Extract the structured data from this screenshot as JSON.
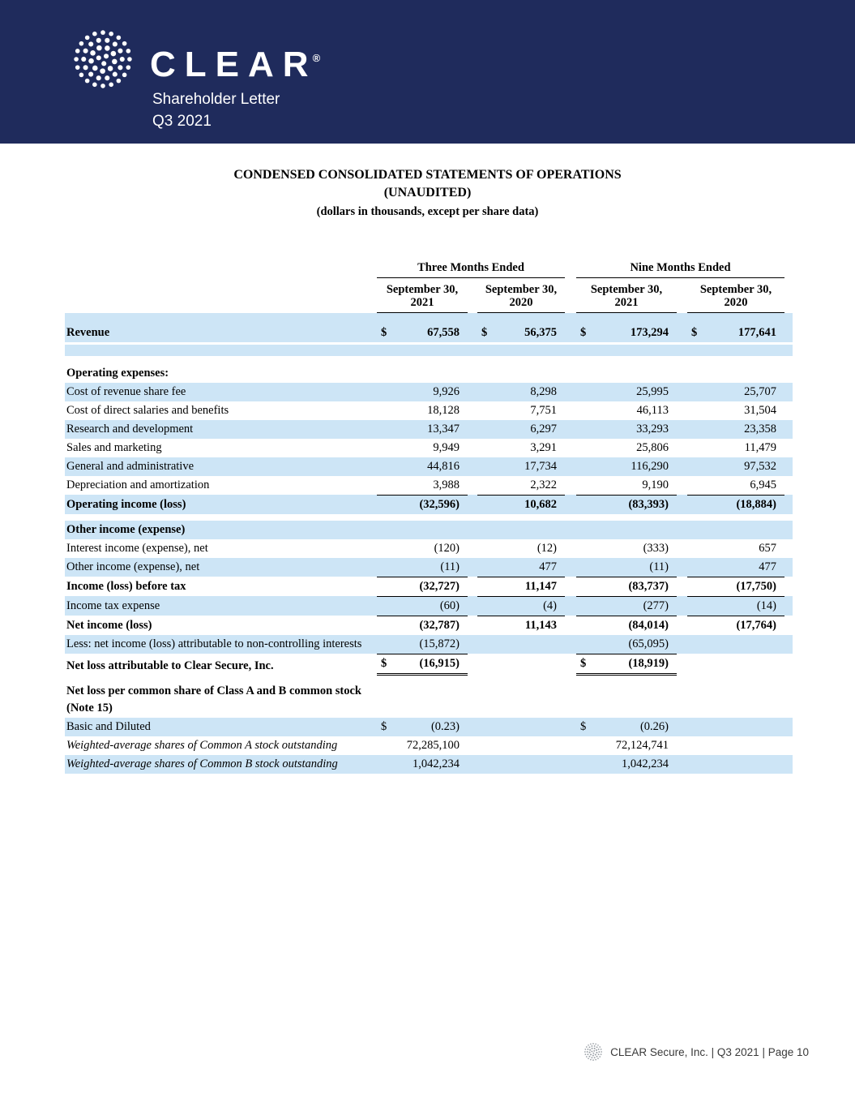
{
  "colors": {
    "banner_bg": "#1f2b5c",
    "row_band": "#cde5f6"
  },
  "banner": {
    "brand": "CLEAR",
    "reg_mark": "®",
    "subtitle": "Shareholder Letter",
    "period": "Q3 2021",
    "logo_icon": "clear-dotted-circle"
  },
  "doc_title": {
    "line1": "CONDENSED CONSOLIDATED STATEMENTS OF OPERATIONS",
    "line2": "(UNAUDITED)",
    "line3": "(dollars in thousands, except per share data)"
  },
  "table": {
    "group_headers": [
      "Three Months Ended",
      "Nine Months Ended"
    ],
    "column_headers": [
      "September 30,\n2021",
      "September 30,\n2020",
      "September 30,\n2021",
      "September 30,\n2020"
    ],
    "rows": [
      {
        "type": "spacer",
        "shade": true,
        "h": 13
      },
      {
        "type": "row",
        "label": "Revenue",
        "bold": true,
        "shade": true,
        "cells": [
          {
            "d": "$",
            "v": "67,558"
          },
          {
            "d": "$",
            "v": "56,375"
          },
          {
            "d": "$",
            "v": "173,294"
          },
          {
            "d": "$",
            "v": "177,641"
          }
        ]
      },
      {
        "type": "spacer",
        "shade": false,
        "h": 3
      },
      {
        "type": "spacer",
        "shade": true,
        "h": 14
      },
      {
        "type": "spacer",
        "shade": false,
        "h": 10
      },
      {
        "type": "row",
        "label": "Operating expenses:",
        "bold": true,
        "shade": false,
        "cells": [
          {},
          {},
          {},
          {}
        ]
      },
      {
        "type": "row",
        "label": "Cost of revenue share fee",
        "shade": true,
        "cells": [
          {
            "v": "9,926"
          },
          {
            "v": "8,298"
          },
          {
            "v": "25,995"
          },
          {
            "v": "25,707"
          }
        ]
      },
      {
        "type": "row",
        "label": "Cost of direct salaries and benefits",
        "shade": false,
        "cells": [
          {
            "v": "18,128"
          },
          {
            "v": "7,751"
          },
          {
            "v": "46,113"
          },
          {
            "v": "31,504"
          }
        ]
      },
      {
        "type": "row",
        "label": "Research and development",
        "shade": true,
        "cells": [
          {
            "v": "13,347"
          },
          {
            "v": "6,297"
          },
          {
            "v": "33,293"
          },
          {
            "v": "23,358"
          }
        ]
      },
      {
        "type": "row",
        "label": "Sales and marketing",
        "shade": false,
        "cells": [
          {
            "v": "9,949"
          },
          {
            "v": "3,291"
          },
          {
            "v": "25,806"
          },
          {
            "v": "11,479"
          }
        ]
      },
      {
        "type": "row",
        "label": "General and administrative",
        "shade": true,
        "cells": [
          {
            "v": "44,816"
          },
          {
            "v": "17,734"
          },
          {
            "v": "116,290"
          },
          {
            "v": "97,532"
          }
        ]
      },
      {
        "type": "row",
        "label": "Depreciation and amortization",
        "shade": false,
        "cells": [
          {
            "v": "3,988"
          },
          {
            "v": "2,322"
          },
          {
            "v": "9,190"
          },
          {
            "v": "6,945"
          }
        ]
      },
      {
        "type": "row",
        "label": "Operating income (loss)",
        "bold": true,
        "shade": true,
        "cells": [
          {
            "v": "(32,596)",
            "bt": true
          },
          {
            "v": "10,682",
            "bt": true
          },
          {
            "v": "(83,393)",
            "bt": true
          },
          {
            "v": "(18,884)",
            "bt": true
          }
        ]
      },
      {
        "type": "spacer",
        "shade": false,
        "h": 8
      },
      {
        "type": "row",
        "label": "Other income (expense)",
        "bold": true,
        "shade": true,
        "cells": [
          {},
          {},
          {},
          {}
        ]
      },
      {
        "type": "row",
        "label": "Interest income (expense), net",
        "shade": false,
        "cells": [
          {
            "v": "(120)"
          },
          {
            "v": "(12)"
          },
          {
            "v": "(333)"
          },
          {
            "v": "657"
          }
        ]
      },
      {
        "type": "row",
        "label": "Other income (expense), net",
        "shade": true,
        "cells": [
          {
            "v": "(11)"
          },
          {
            "v": "477"
          },
          {
            "v": "(11)"
          },
          {
            "v": "477"
          }
        ]
      },
      {
        "type": "row",
        "label": "Income (loss) before tax",
        "bold": true,
        "shade": false,
        "cells": [
          {
            "v": "(32,727)",
            "bt": true
          },
          {
            "v": "11,147",
            "bt": true
          },
          {
            "v": "(83,737)",
            "bt": true
          },
          {
            "v": "(17,750)",
            "bt": true
          }
        ]
      },
      {
        "type": "row",
        "label": "Income tax expense",
        "shade": true,
        "cells": [
          {
            "v": "(60)",
            "bt": true
          },
          {
            "v": "(4)",
            "bt": true
          },
          {
            "v": "(277)",
            "bt": true
          },
          {
            "v": "(14)",
            "bt": true
          }
        ]
      },
      {
        "type": "row",
        "label": "Net income (loss)",
        "bold": true,
        "shade": false,
        "cells": [
          {
            "v": "(32,787)",
            "bt": true
          },
          {
            "v": "11,143",
            "bt": true
          },
          {
            "v": "(84,014)",
            "bt": true
          },
          {
            "v": "(17,764)",
            "bt": true
          }
        ]
      },
      {
        "type": "row",
        "label": "Less: net income (loss) attributable to non-controlling interests",
        "shade": true,
        "cells": [
          {
            "v": "(15,872)"
          },
          {},
          {
            "v": "(65,095)"
          },
          {}
        ]
      },
      {
        "type": "row",
        "label": "Net loss attributable to Clear Secure, Inc.",
        "bold": true,
        "shade": false,
        "cells": [
          {
            "d": "$",
            "v": "(16,915)",
            "bt": true,
            "db": true
          },
          {},
          {
            "d": "$",
            "v": "(18,919)",
            "bt": true,
            "db": true
          },
          {}
        ]
      },
      {
        "type": "spacer",
        "shade": false,
        "h": 8
      },
      {
        "type": "row",
        "label": "Net loss per common share of Class A and B common stock (Note 15)",
        "bold": true,
        "shade": false,
        "cells": [
          {},
          {},
          {},
          {}
        ]
      },
      {
        "type": "row",
        "label": "Basic and Diluted",
        "shade": true,
        "cells": [
          {
            "d": "$",
            "v": "(0.23)"
          },
          {},
          {
            "d": "$",
            "v": "(0.26)"
          },
          {}
        ]
      },
      {
        "type": "row",
        "label": "Weighted-average shares of Common A stock outstanding",
        "italic": true,
        "shade": false,
        "cells": [
          {
            "v": "72,285,100"
          },
          {},
          {
            "v": "72,124,741"
          },
          {}
        ]
      },
      {
        "type": "row",
        "label": "Weighted-average shares of Common B stock outstanding",
        "italic": true,
        "shade": true,
        "cells": [
          {
            "v": "1,042,234"
          },
          {},
          {
            "v": "1,042,234"
          },
          {}
        ]
      }
    ]
  },
  "footer": {
    "icon": "clear-dotted-circle",
    "text": "CLEAR Secure, Inc. | Q3 2021 | Page 10"
  }
}
